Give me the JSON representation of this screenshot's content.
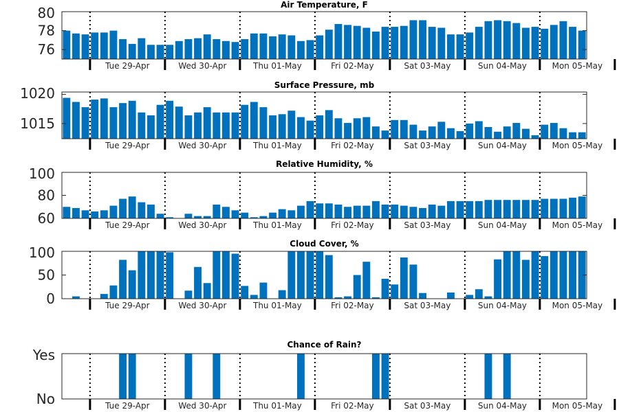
{
  "chart_data": [
    {
      "type": "bar",
      "title": "Air Temperature, F",
      "xlabel": "",
      "ylabel": "",
      "ylim": [
        75,
        80
      ],
      "yticks": [
        "76",
        "78",
        "80"
      ],
      "ytick_values": [
        76,
        78,
        80
      ],
      "bar_color": "#0072bd",
      "day_labels": [
        "Tue 29-Apr",
        "Wed 30-Apr",
        "Thu 01-May",
        "Fri 02-May",
        "Sat 03-May",
        "Sun 04-May",
        "Mon 05-May"
      ],
      "values": [
        78.0,
        77.7,
        77.6,
        77.8,
        77.8,
        78.0,
        77.1,
        76.6,
        77.2,
        76.5,
        76.5,
        76.5,
        76.9,
        77.1,
        77.2,
        77.6,
        77.1,
        76.9,
        76.8,
        77.1,
        77.7,
        77.7,
        77.4,
        77.6,
        77.5,
        76.9,
        77.0,
        77.5,
        78.1,
        78.7,
        78.6,
        78.5,
        78.3,
        77.9,
        78.4,
        78.4,
        78.5,
        79.1,
        79.1,
        78.4,
        78.3,
        77.6,
        77.6,
        77.8,
        78.4,
        79.0,
        79.1,
        79.0,
        78.8,
        78.3,
        78.4,
        78.2,
        78.6,
        79.0,
        78.4,
        78.0
      ]
    },
    {
      "type": "bar",
      "title": "Surface Pressure, mb",
      "xlabel": "",
      "ylabel": "",
      "ylim": [
        1012.4,
        1020.4
      ],
      "yticks": [
        "1015",
        "1020"
      ],
      "ytick_values": [
        1015,
        1020
      ],
      "bar_color": "#0072bd",
      "day_labels": [
        "Tue 29-Apr",
        "Wed 30-Apr",
        "Thu 01-May",
        "Fri 02-May",
        "Sat 03-May",
        "Sun 04-May",
        "Mon 05-May"
      ],
      "values": [
        1019.4,
        1018.7,
        1017.8,
        1019.1,
        1019.3,
        1017.8,
        1018.5,
        1018.9,
        1016.9,
        1016.4,
        1018.2,
        1018.9,
        1017.9,
        1016.4,
        1016.9,
        1017.8,
        1016.9,
        1016.9,
        1016.9,
        1018.2,
        1018.7,
        1017.8,
        1016.4,
        1016.6,
        1017.2,
        1016.1,
        1015.5,
        1016.4,
        1017.3,
        1015.9,
        1015.1,
        1015.9,
        1016.1,
        1014.5,
        1013.8,
        1015.6,
        1015.6,
        1014.8,
        1013.8,
        1014.5,
        1015.3,
        1014.2,
        1013.7,
        1015.0,
        1015.4,
        1014.4,
        1013.6,
        1014.5,
        1015.1,
        1014.1,
        1013.0,
        1014.8,
        1015.1,
        1014.2,
        1013.5,
        1013.5
      ]
    },
    {
      "type": "bar",
      "title": "Relative Humidity, %",
      "xlabel": "",
      "ylabel": "",
      "ylim": [
        60,
        100
      ],
      "yticks": [
        "60",
        "80",
        "100"
      ],
      "ytick_values": [
        60,
        80,
        100
      ],
      "bar_color": "#0072bd",
      "day_labels": [
        "Tue 29-Apr",
        "Wed 30-Apr",
        "Thu 01-May",
        "Fri 02-May",
        "Sat 03-May",
        "Sun 04-May",
        "Mon 05-May"
      ],
      "values": [
        70,
        69,
        67,
        66,
        67,
        71,
        77,
        79,
        74,
        72,
        64,
        61,
        60,
        64,
        62,
        62,
        72,
        70,
        67,
        65,
        61,
        62,
        65,
        68,
        67,
        71,
        75,
        73,
        73,
        72,
        70,
        71,
        71,
        75,
        72,
        72,
        71,
        70,
        69,
        72,
        71,
        75,
        75,
        75,
        75,
        76,
        76,
        76,
        76,
        76,
        76,
        77,
        77,
        77,
        78,
        79
      ]
    },
    {
      "type": "bar",
      "title": "Cloud Cover, %",
      "xlabel": "",
      "ylabel": "",
      "ylim": [
        0,
        100
      ],
      "yticks": [
        "0",
        "50",
        "100"
      ],
      "ytick_values": [
        0,
        50,
        100
      ],
      "bar_color": "#0072bd",
      "day_labels": [
        "Tue 29-Apr",
        "Wed 30-Apr",
        "Thu 01-May",
        "Fri 02-May",
        "Sat 03-May",
        "Sun 04-May",
        "Mon 05-May"
      ],
      "values": [
        0,
        5,
        0,
        0,
        10,
        28,
        82,
        60,
        100,
        100,
        100,
        98,
        0,
        17,
        67,
        33,
        100,
        100,
        95,
        27,
        8,
        34,
        0,
        18,
        100,
        100,
        100,
        100,
        92,
        3,
        5,
        50,
        78,
        3,
        42,
        30,
        87,
        72,
        12,
        0,
        0,
        13,
        0,
        8,
        20,
        5,
        83,
        100,
        100,
        82,
        100,
        90,
        100,
        100,
        100,
        100
      ]
    },
    {
      "type": "bar",
      "title": "Chance of Rain?",
      "xlabel": "",
      "ylabel": "",
      "ylim": [
        0,
        1
      ],
      "yticks": [
        "No",
        "Yes"
      ],
      "ytick_values": [
        0,
        1
      ],
      "bar_color": "#0072bd",
      "day_labels": [
        "Tue 29-Apr",
        "Wed 30-Apr",
        "Thu 01-May",
        "Fri 02-May",
        "Sat 03-May",
        "Sun 04-May",
        "Mon 05-May"
      ],
      "values": [
        0,
        0,
        0,
        0,
        0,
        0,
        1,
        1,
        0,
        0,
        0,
        0,
        0,
        1,
        0,
        0,
        1,
        0,
        0,
        0,
        0,
        0,
        0,
        0,
        0,
        1,
        0,
        0,
        0,
        0,
        0,
        0,
        0,
        1,
        1,
        0,
        0,
        0,
        0,
        0,
        0,
        0,
        0,
        0,
        0,
        1,
        0,
        1,
        0,
        0,
        0,
        0,
        0,
        0,
        0,
        0
      ]
    }
  ]
}
